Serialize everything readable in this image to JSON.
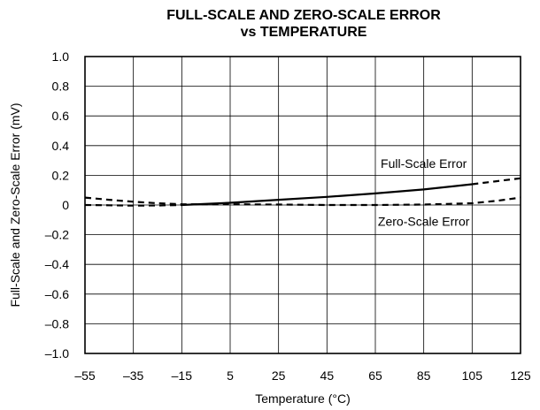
{
  "chart_data": {
    "type": "line",
    "title_line1": "FULL-SCALE AND ZERO-SCALE ERROR",
    "title_line2": "vs TEMPERATURE",
    "xlabel": "Temperature (°C)",
    "ylabel": "Full-Scale and Zero-Scale Error (mV)",
    "xlim": [
      -55,
      125
    ],
    "ylim": [
      -1.0,
      1.0
    ],
    "x_ticks": [
      "–55",
      "–35",
      "–15",
      "5",
      "25",
      "45",
      "65",
      "85",
      "105",
      "125"
    ],
    "x_tick_values": [
      -55,
      -35,
      -15,
      5,
      25,
      45,
      65,
      85,
      105,
      125
    ],
    "y_ticks": [
      "1.0",
      "0.8",
      "0.6",
      "0.4",
      "0.2",
      "0",
      "–0.2",
      "–0.4",
      "–0.6",
      "–0.8",
      "–1.0"
    ],
    "y_tick_values": [
      1.0,
      0.8,
      0.6,
      0.4,
      0.2,
      0,
      -0.2,
      -0.4,
      -0.6,
      -0.8,
      -1.0
    ],
    "grid": true,
    "series": [
      {
        "name": "Full-Scale Error",
        "color": "#000000",
        "segments": [
          {
            "style": "dashed",
            "x": [
              -55,
              -45,
              -35,
              -25,
              -15
            ],
            "y": [
              0.0,
              -0.002,
              -0.004,
              -0.003,
              0.0
            ]
          },
          {
            "style": "solid",
            "x": [
              -15,
              5,
              25,
              45,
              65,
              85,
              105
            ],
            "y": [
              0.0,
              0.015,
              0.035,
              0.055,
              0.078,
              0.105,
              0.14
            ]
          },
          {
            "style": "dashed",
            "x": [
              105,
              115,
              125
            ],
            "y": [
              0.14,
              0.16,
              0.18
            ]
          }
        ]
      },
      {
        "name": "Zero-Scale Error",
        "color": "#000000",
        "segments": [
          {
            "style": "dashed",
            "x": [
              -55,
              -45,
              -35,
              -25,
              -15,
              5,
              25,
              45,
              65,
              85,
              105,
              115,
              125
            ],
            "y": [
              0.05,
              0.035,
              0.022,
              0.012,
              0.005,
              0.005,
              0.003,
              0.0,
              0.0,
              0.003,
              0.012,
              0.028,
              0.05
            ]
          }
        ]
      }
    ],
    "annotations": [
      {
        "text": "Full-Scale Error",
        "x": 85,
        "y": 0.28
      },
      {
        "text": "Zero-Scale Error",
        "x": 85,
        "y": -0.11
      }
    ]
  }
}
